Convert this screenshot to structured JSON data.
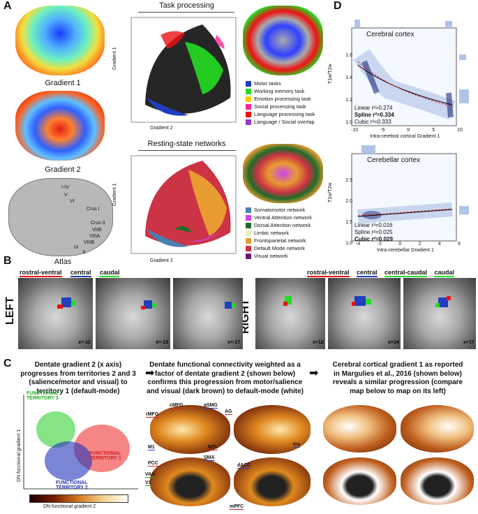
{
  "panel_letters": {
    "a": "A",
    "b": "B",
    "c": "C",
    "d": "D"
  },
  "panel_a": {
    "gradient1_label": "Gradient 1",
    "gradient2_label": "Gradient 2",
    "atlas_label": "Atlas",
    "atlas_regions": [
      "I-IV",
      "V",
      "VI",
      "Crus I",
      "Crus II",
      "VIIB",
      "VIIIA",
      "VIIIB",
      "IX",
      "X"
    ],
    "task_title": "Task processing",
    "rest_title": "Resting-state networks",
    "task_legend": [
      {
        "label": "Motor tasks",
        "color": "#1f3fbf"
      },
      {
        "label": "Working memory task",
        "color": "#22dd22"
      },
      {
        "label": "Emotion processing task",
        "color": "#ffcc00"
      },
      {
        "label": "Social processing task",
        "color": "#ff2299"
      },
      {
        "label": "Language processing task",
        "color": "#ee1111"
      },
      {
        "label": "Language / Social overlap",
        "color": "#9933cc"
      }
    ],
    "rest_legend": [
      {
        "label": "Somatomotor network",
        "color": "#4a7fb0"
      },
      {
        "label": "Ventral Attention network",
        "color": "#cc44ee"
      },
      {
        "label": "Dorsal Attention network",
        "color": "#1f6b2a"
      },
      {
        "label": "Limbic network",
        "color": "#e8f0c0"
      },
      {
        "label": "Frontoparietal network",
        "color": "#e89b30"
      },
      {
        "label": "Default Mode network",
        "color": "#cc3344"
      },
      {
        "label": "Visual network",
        "color": "#6a1a7a"
      }
    ],
    "scatter_xlabel": "Gradient 2",
    "scatter_ylabel": "Gradient 1"
  },
  "panel_b": {
    "left_label": "LEFT",
    "right_label": "RIGHT",
    "left_tags": [
      {
        "text": "rostral-ventral",
        "color": "#ee1111"
      },
      {
        "text": "central",
        "color": "#1f3fbf"
      },
      {
        "text": "caudal",
        "color": "#22dd22"
      }
    ],
    "right_tags": [
      {
        "text": "rostral-ventral",
        "color": "#ee1111"
      },
      {
        "text": "central",
        "color": "#1f3fbf"
      },
      {
        "text": "central-caudal",
        "color": "#22dd22"
      },
      {
        "text": "caudal",
        "color": "#22dd22"
      }
    ],
    "slices": [
      "x=-11",
      "x=-13",
      "x=-17",
      "x=12",
      "x=14",
      "x=17"
    ]
  },
  "panel_c": {
    "text1": "Dentate gradient 2 (x axis) progresses from territories 2 and 3 (salience/motor and visual) to territory 1 (default-mode)",
    "text2": "Dentate functional connectivity weighted as a factor of dentate gradient 2 (shown below) confirms this progression from motor/salience and visual (dark brown) to default-mode (white)",
    "text3": "Cerebral cortical gradient 1 as reported in Margulies et al., 2016 (shown below) reveals a similar progression (compare map below to map on its left)",
    "territory3": "FUNCTIONAL TERRITORY 3",
    "territory1": "FUNCTIONAL TERRITORY 1",
    "territory2": "FUNCTIONAL TERRITORY 2",
    "ylabel": "DN functional gradient 1",
    "xlabel": "DN functional gradient 2",
    "regions": [
      "cMFG",
      "aSMG",
      "AG",
      "rMFG",
      "M1",
      "MTL",
      "Ins",
      "SMA",
      "PCC",
      "dACC",
      "VAA",
      "V1",
      "mPFC"
    ]
  },
  "panel_d": {
    "cerebral_title": "Cerebral cortex",
    "cerebellar_title": "Cerebellar cortex",
    "ylabel": "T1w/T2w",
    "cerebral_xlabel": "Intra-cerebral cortical Gradient 1",
    "cerebellar_xlabel": "Intra-cerebellar Gradient 1",
    "cerebral_stats": [
      "Linear r²=0.274",
      "Spline r²=0.334",
      "Cubic r²=0.333"
    ],
    "cerebellar_stats": [
      "Linear r²=0.016",
      "Spline r²=0.025",
      "Cubic r²=0.029"
    ],
    "cerebral_yticks": [
      "1.6",
      "1.4",
      "1.2",
      "1.0"
    ],
    "cerebral_xticks": [
      "-10",
      "-5",
      "0",
      "5",
      "10"
    ],
    "cerebellar_yticks": [
      "2.5",
      "2.0",
      "1.5",
      "1.0"
    ],
    "cerebellar_xticks": [
      "-4",
      "-2",
      "0",
      "2",
      "4",
      "6"
    ]
  }
}
